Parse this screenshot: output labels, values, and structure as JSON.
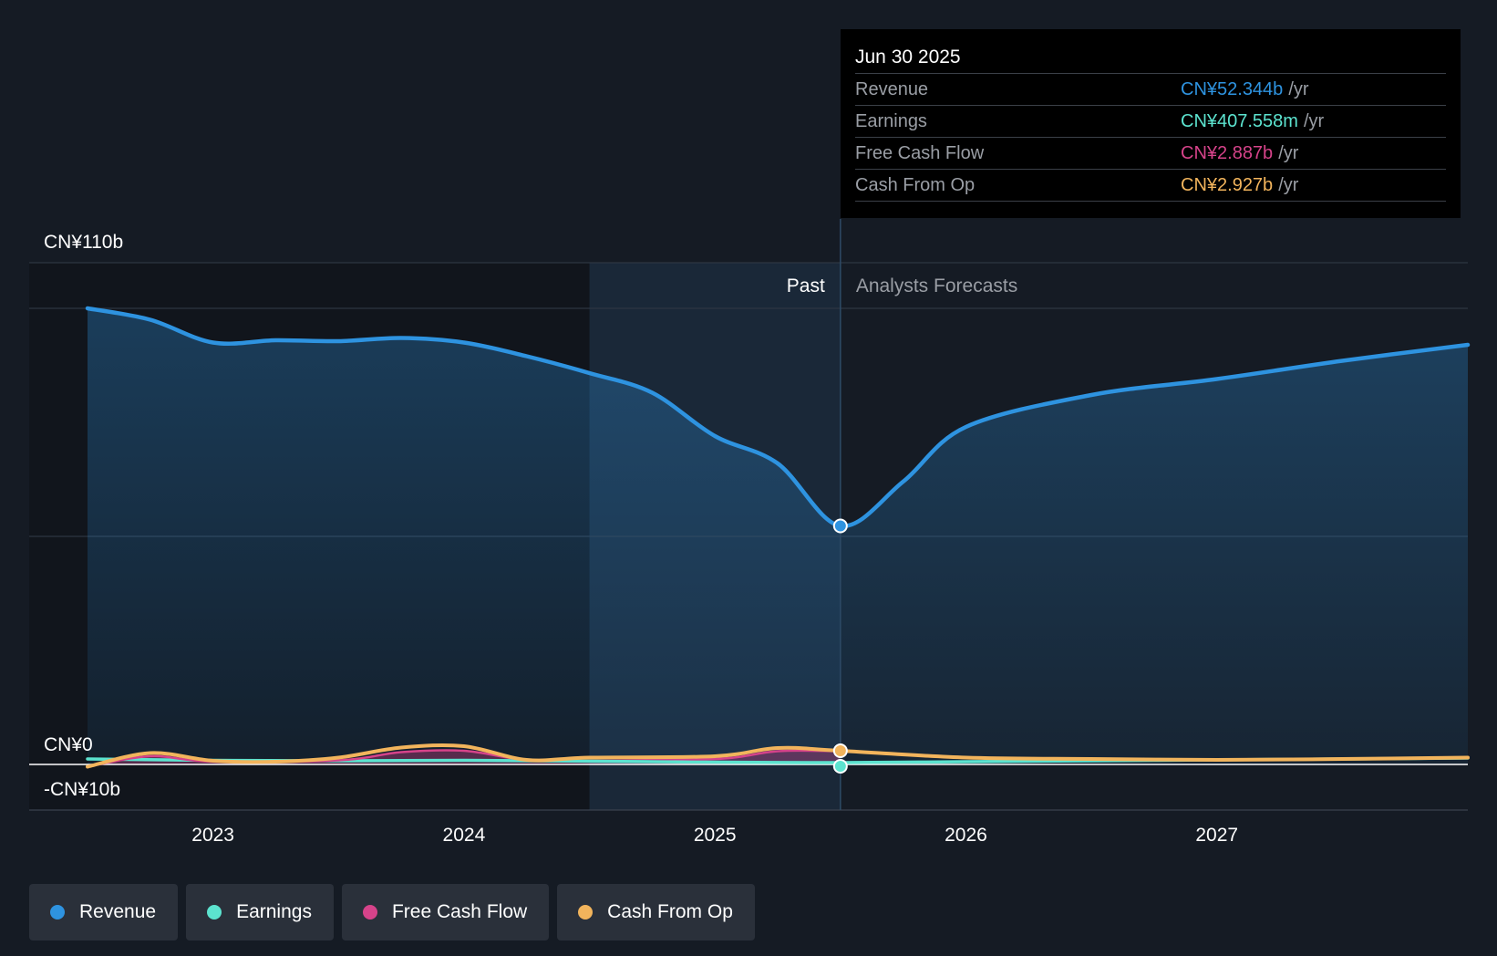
{
  "colors": {
    "revenue": "#2e93e0",
    "earnings": "#5ce3cf",
    "fcf": "#d6438a",
    "cfo": "#f2b45c",
    "background": "#151b24",
    "past_shade": "#11151c",
    "recent_band": "#1c2b3d"
  },
  "tooltip": {
    "date": "Jun 30 2025",
    "rows": [
      {
        "label": "Revenue",
        "value": "CN¥52.344b",
        "unit": "/yr",
        "color": "#2e93e0"
      },
      {
        "label": "Earnings",
        "value": "CN¥407.558m",
        "unit": "/yr",
        "color": "#5ce3cf"
      },
      {
        "label": "Free Cash Flow",
        "value": "CN¥2.887b",
        "unit": "/yr",
        "color": "#d6438a"
      },
      {
        "label": "Cash From Op",
        "value": "CN¥2.927b",
        "unit": "/yr",
        "color": "#f2b45c"
      }
    ]
  },
  "legend": [
    {
      "label": "Revenue",
      "color": "#2e93e0"
    },
    {
      "label": "Earnings",
      "color": "#5ce3cf"
    },
    {
      "label": "Free Cash Flow",
      "color": "#d6438a"
    },
    {
      "label": "Cash From Op",
      "color": "#f2b45c"
    }
  ],
  "chart_data": {
    "type": "area",
    "title": "",
    "xlabel": "",
    "ylabel": "",
    "ylim": [
      -10,
      110
    ],
    "y_tick_labels": [
      {
        "value": 110,
        "label": "CN¥110b"
      },
      {
        "value": 0,
        "label": "CN¥0"
      },
      {
        "value": -10,
        "label": "-CN¥10b"
      }
    ],
    "x_ticks": [
      {
        "value": 2023.0,
        "label": "2023"
      },
      {
        "value": 2024.0,
        "label": "2024"
      },
      {
        "value": 2025.0,
        "label": "2025"
      },
      {
        "value": 2026.0,
        "label": "2026"
      },
      {
        "value": 2027.0,
        "label": "2027"
      }
    ],
    "xlim": [
      2022.27,
      2028.0
    ],
    "past_label": "Past",
    "forecast_label": "Analysts Forecasts",
    "divider_x": 2025.5,
    "recent_band_start": 2024.5,
    "highlight_x": 2025.5,
    "series": [
      {
        "name": "Revenue",
        "key": "revenue",
        "fill": true,
        "points": [
          [
            2022.5,
            100.0
          ],
          [
            2022.75,
            97.5
          ],
          [
            2023.0,
            92.5
          ],
          [
            2023.25,
            93.0
          ],
          [
            2023.5,
            92.8
          ],
          [
            2023.75,
            93.5
          ],
          [
            2024.0,
            92.5
          ],
          [
            2024.25,
            89.5
          ],
          [
            2024.5,
            85.8
          ],
          [
            2024.75,
            81.5
          ],
          [
            2025.0,
            72.0
          ],
          [
            2025.25,
            66.0
          ],
          [
            2025.5,
            52.3
          ],
          [
            2025.75,
            62.0
          ],
          [
            2026.0,
            74.0
          ],
          [
            2026.5,
            81.0
          ],
          [
            2027.0,
            84.5
          ],
          [
            2027.5,
            88.5
          ],
          [
            2028.0,
            92.0
          ]
        ]
      },
      {
        "name": "Earnings",
        "key": "earnings",
        "fill": false,
        "points": [
          [
            2022.5,
            1.2
          ],
          [
            2023.0,
            0.9
          ],
          [
            2023.5,
            0.8
          ],
          [
            2024.0,
            0.9
          ],
          [
            2024.5,
            0.7
          ],
          [
            2025.0,
            0.5
          ],
          [
            2025.5,
            0.4
          ],
          [
            2026.0,
            0.6
          ],
          [
            2026.5,
            0.8
          ],
          [
            2027.0,
            1.0
          ],
          [
            2027.5,
            1.2
          ],
          [
            2028.0,
            1.4
          ]
        ]
      },
      {
        "name": "Free Cash Flow",
        "key": "fcf",
        "fill": true,
        "points": [
          [
            2022.5,
            -0.5
          ],
          [
            2022.75,
            1.8
          ],
          [
            2023.0,
            0.6
          ],
          [
            2023.5,
            0.9
          ],
          [
            2023.75,
            2.7
          ],
          [
            2024.0,
            3.0
          ],
          [
            2024.25,
            1.0
          ],
          [
            2024.5,
            1.4
          ],
          [
            2025.0,
            1.2
          ],
          [
            2025.25,
            2.9
          ],
          [
            2025.5,
            2.9
          ]
        ]
      },
      {
        "name": "Cash From Op",
        "key": "cfo",
        "fill": false,
        "points": [
          [
            2022.5,
            -0.5
          ],
          [
            2022.75,
            2.5
          ],
          [
            2023.0,
            0.8
          ],
          [
            2023.25,
            0.6
          ],
          [
            2023.5,
            1.5
          ],
          [
            2023.75,
            3.7
          ],
          [
            2024.0,
            4.0
          ],
          [
            2024.25,
            1.0
          ],
          [
            2024.5,
            1.5
          ],
          [
            2025.0,
            1.8
          ],
          [
            2025.25,
            3.6
          ],
          [
            2025.5,
            3.0
          ],
          [
            2026.0,
            1.5
          ],
          [
            2026.5,
            1.2
          ],
          [
            2027.0,
            1.0
          ],
          [
            2027.5,
            1.2
          ],
          [
            2028.0,
            1.5
          ]
        ]
      }
    ]
  }
}
